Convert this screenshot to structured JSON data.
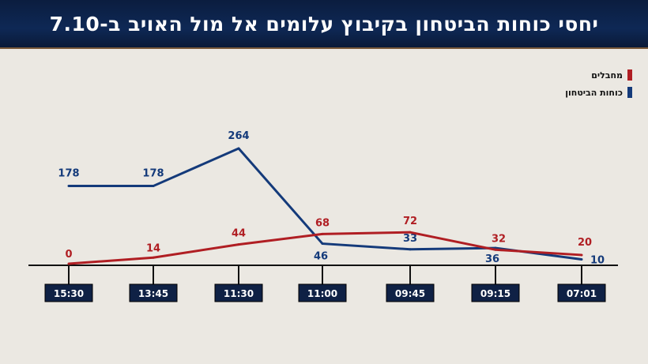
{
  "title": "יחסי כוחות הביטחון בקיבוץ עלומים אל מול האויב ב-7.10",
  "chart_data": {
    "type": "line",
    "title": "יחסי כוחות הביטחון בקיבוץ עלומים אל מול האויב ב-7.10",
    "categories": [
      "15:30",
      "13:45",
      "11:30",
      "11:00",
      "09:45",
      "09:15",
      "07:01"
    ],
    "series": [
      {
        "name": "כוחות הביטחון",
        "color": "#143a7a",
        "values": [
          178,
          178,
          264,
          46,
          33,
          36,
          10
        ]
      },
      {
        "name": "מחבלים",
        "color": "#b01e23",
        "values": [
          0,
          14,
          44,
          68,
          72,
          32,
          20
        ]
      }
    ],
    "xlabel": "",
    "ylabel": "",
    "ylim": [
      0,
      264
    ],
    "grid": false,
    "legend": "top-right"
  }
}
